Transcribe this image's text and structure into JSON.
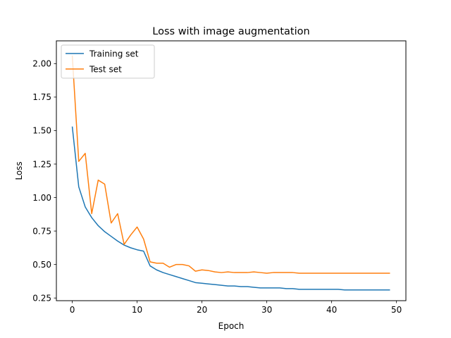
{
  "chart_data": {
    "type": "line",
    "title": "Loss with image augmentation",
    "xlabel": "Epoch",
    "ylabel": "Loss",
    "xlim": [
      -2.45,
      51.45
    ],
    "ylim": [
      0.23,
      2.17
    ],
    "xticks": [
      0,
      10,
      20,
      30,
      40,
      50
    ],
    "xtick_labels": [
      "0",
      "10",
      "20",
      "30",
      "40",
      "50"
    ],
    "yticks": [
      0.25,
      0.5,
      0.75,
      1.0,
      1.25,
      1.5,
      1.75,
      2.0
    ],
    "ytick_labels": [
      "0.25",
      "0.50",
      "0.75",
      "1.00",
      "1.25",
      "1.50",
      "1.75",
      "2.00"
    ],
    "grid": false,
    "legend_position": "top-left",
    "x": [
      0,
      1,
      2,
      3,
      4,
      5,
      6,
      7,
      8,
      9,
      10,
      11,
      12,
      13,
      14,
      15,
      16,
      17,
      18,
      19,
      20,
      21,
      22,
      23,
      24,
      25,
      26,
      27,
      28,
      29,
      30,
      31,
      32,
      33,
      34,
      35,
      36,
      37,
      38,
      39,
      40,
      41,
      42,
      43,
      44,
      45,
      46,
      47,
      48,
      49
    ],
    "series": [
      {
        "name": "Training set",
        "color": "#1f77b4",
        "values": [
          1.53,
          1.08,
          0.93,
          0.85,
          0.79,
          0.745,
          0.71,
          0.675,
          0.645,
          0.625,
          0.61,
          0.6,
          0.49,
          0.46,
          0.44,
          0.425,
          0.41,
          0.395,
          0.38,
          0.365,
          0.36,
          0.355,
          0.35,
          0.345,
          0.34,
          0.34,
          0.335,
          0.335,
          0.33,
          0.325,
          0.325,
          0.325,
          0.325,
          0.32,
          0.32,
          0.315,
          0.315,
          0.315,
          0.315,
          0.315,
          0.315,
          0.315,
          0.31,
          0.31,
          0.31,
          0.31,
          0.31,
          0.31,
          0.31,
          0.31
        ]
      },
      {
        "name": "Test set",
        "color": "#ff7f0e",
        "values": [
          2.06,
          1.27,
          1.33,
          0.88,
          1.13,
          1.1,
          0.81,
          0.88,
          0.65,
          0.72,
          0.78,
          0.69,
          0.52,
          0.51,
          0.51,
          0.48,
          0.5,
          0.5,
          0.49,
          0.45,
          0.46,
          0.455,
          0.445,
          0.44,
          0.445,
          0.44,
          0.44,
          0.44,
          0.445,
          0.44,
          0.435,
          0.44,
          0.44,
          0.44,
          0.44,
          0.435,
          0.435,
          0.435,
          0.435,
          0.435,
          0.435,
          0.435,
          0.435,
          0.435,
          0.435,
          0.435,
          0.435,
          0.435,
          0.435,
          0.435
        ]
      }
    ]
  }
}
